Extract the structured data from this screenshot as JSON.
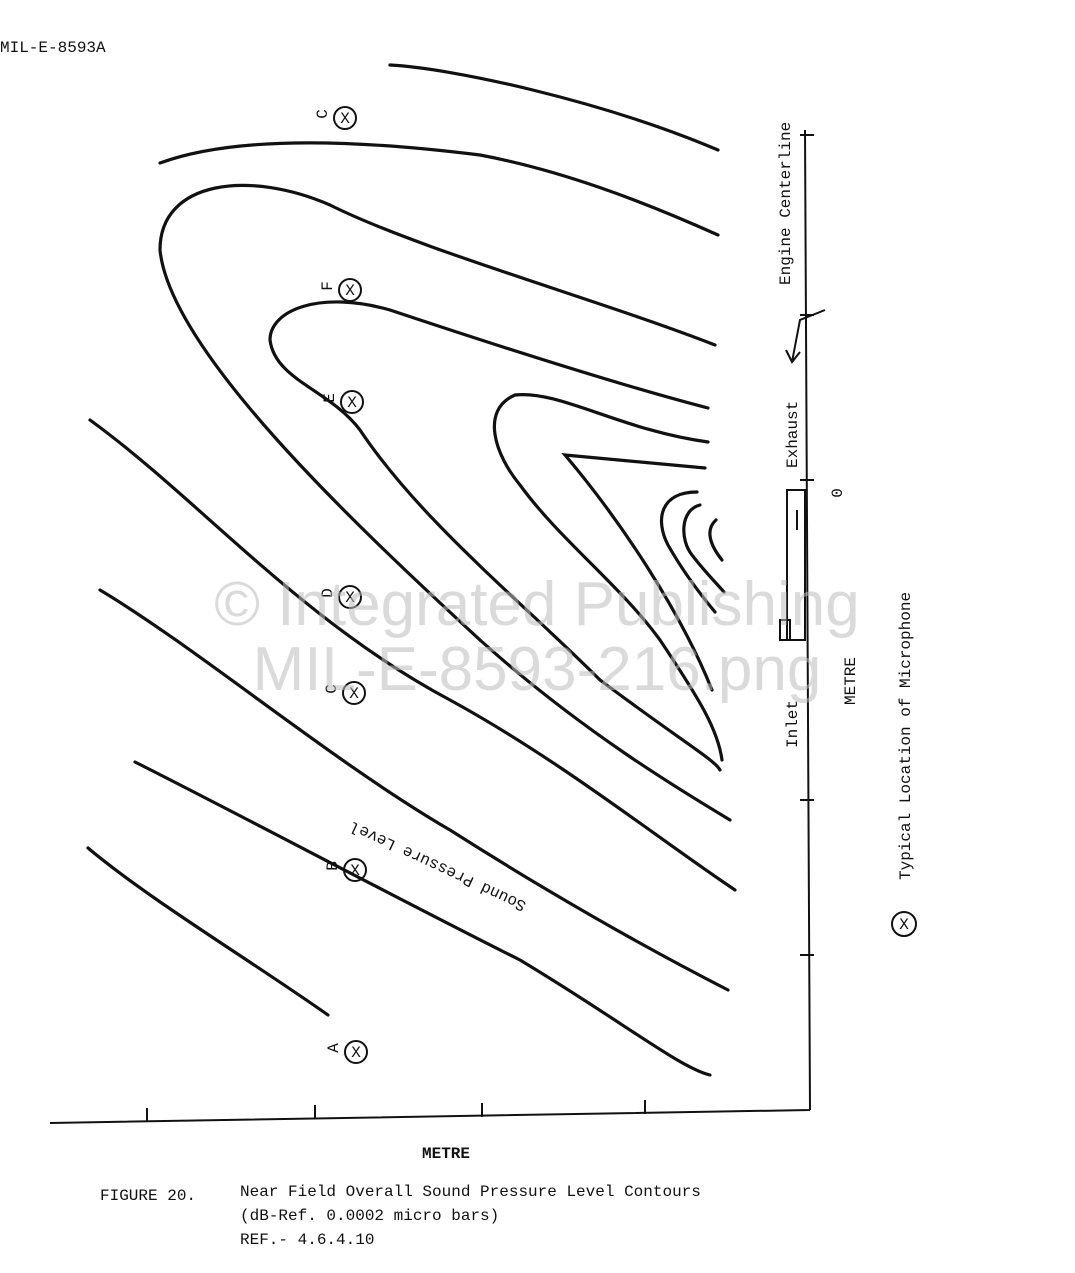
{
  "header": {
    "doc_id": "MIL-E-8593A"
  },
  "figure": {
    "symbol": "X",
    "microphones": [
      {
        "label": "C"
      },
      {
        "label": "F"
      },
      {
        "label": "E"
      },
      {
        "label": "D"
      },
      {
        "label": "C"
      },
      {
        "label": "B"
      },
      {
        "label": "A"
      }
    ],
    "engine_centerline": "Engine Centerline",
    "exhaust": "Exhaust",
    "inlet": "Inlet",
    "zero": "0",
    "right_axis_label": "METRE",
    "bottom_axis_label": "METRE",
    "contour_label": "Sound Pressure Level",
    "legend": "Typical Location of Microphone"
  },
  "caption": {
    "number": "FIGURE 20.",
    "title": "Near Field Overall Sound Pressure Level Contours",
    "subtitle": "(dB-Ref. 0.0002 micro bars)",
    "ref": "REF.- 4.6.4.10"
  },
  "watermark": {
    "line1": "© Integrated Publishing",
    "line2": "MIL-E-8593-216.png"
  }
}
